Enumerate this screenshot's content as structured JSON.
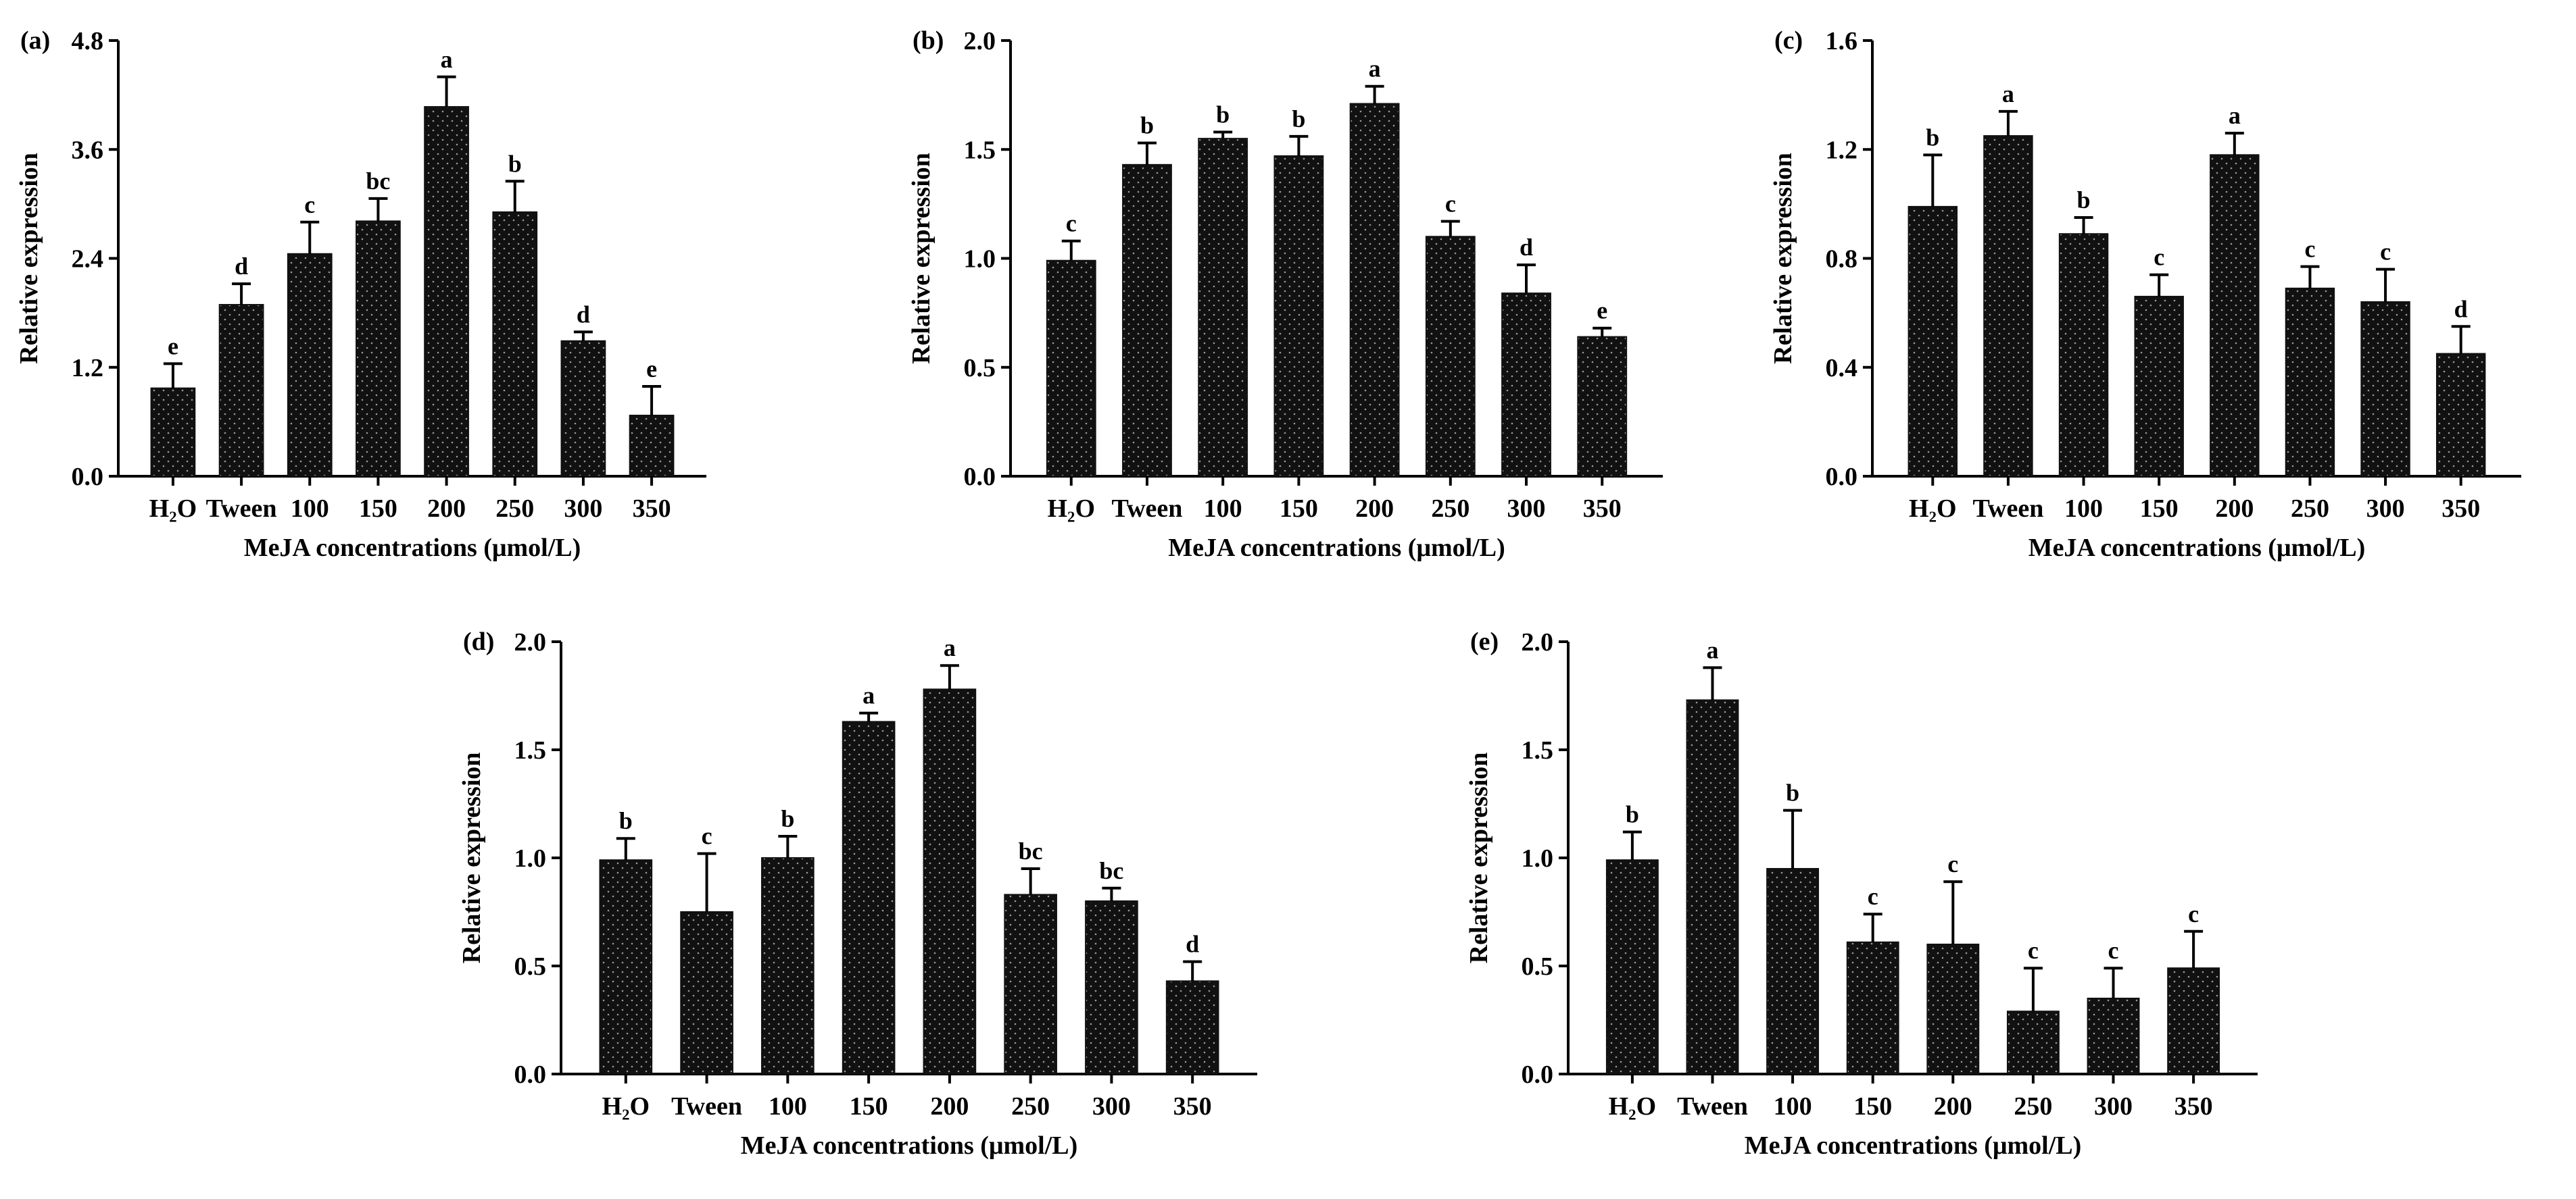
{
  "chart_data": [
    {
      "type": "bar",
      "panel": "(a)",
      "categories": [
        "H₂O",
        "Tween",
        "100",
        "150",
        "200",
        "250",
        "300",
        "350"
      ],
      "values": [
        0.97,
        1.89,
        2.45,
        2.81,
        4.07,
        2.91,
        1.49,
        0.67
      ],
      "errors": [
        0.27,
        0.23,
        0.35,
        0.25,
        0.33,
        0.34,
        0.1,
        0.32
      ],
      "significance": [
        "e",
        "d",
        "c",
        "bc",
        "a",
        "b",
        "d",
        "e"
      ],
      "xlabel": "MeJA  concentrations (μmol/L)",
      "ylabel": "Relative expression",
      "ylim": [
        0,
        4.8
      ],
      "yticks": [
        "0.0",
        "1.2",
        "2.4",
        "3.6",
        "4.8"
      ]
    },
    {
      "type": "bar",
      "panel": "(b)",
      "categories": [
        "H₂O",
        "Tween",
        "100",
        "150",
        "200",
        "250",
        "300",
        "350"
      ],
      "values": [
        0.99,
        1.43,
        1.55,
        1.47,
        1.71,
        1.1,
        0.84,
        0.64
      ],
      "errors": [
        0.09,
        0.1,
        0.03,
        0.09,
        0.08,
        0.07,
        0.13,
        0.04
      ],
      "significance": [
        "c",
        "b",
        "b",
        "b",
        "a",
        "c",
        "d",
        "e"
      ],
      "xlabel": "MeJA  concentrations (μmol/L)",
      "ylabel": "Relative expression",
      "ylim": [
        0,
        2.0
      ],
      "yticks": [
        "0.0",
        "0.5",
        "1.0",
        "1.5",
        "2.0"
      ]
    },
    {
      "type": "bar",
      "panel": "(c)",
      "categories": [
        "H₂O",
        "Tween",
        "100",
        "150",
        "200",
        "250",
        "300",
        "350"
      ],
      "values": [
        0.99,
        1.25,
        0.89,
        0.66,
        1.18,
        0.69,
        0.64,
        0.45
      ],
      "errors": [
        0.19,
        0.09,
        0.06,
        0.08,
        0.08,
        0.08,
        0.12,
        0.1
      ],
      "significance": [
        "b",
        "a",
        "b",
        "c",
        "a",
        "c",
        "c",
        "d"
      ],
      "xlabel": "MeJA  concentrations (μmol/L)",
      "ylabel": "Relative expression",
      "ylim": [
        0,
        1.6
      ],
      "yticks": [
        "0.0",
        "0.4",
        "0.8",
        "1.2",
        "1.6"
      ]
    },
    {
      "type": "bar",
      "panel": "(d)",
      "categories": [
        "H₂O",
        "Tween",
        "100",
        "150",
        "200",
        "250",
        "300",
        "350"
      ],
      "values": [
        0.99,
        0.75,
        1.0,
        1.63,
        1.78,
        0.83,
        0.8,
        0.43
      ],
      "errors": [
        0.1,
        0.27,
        0.1,
        0.04,
        0.11,
        0.12,
        0.06,
        0.09
      ],
      "significance": [
        "b",
        "c",
        "b",
        "a",
        "a",
        "bc",
        "bc",
        "d"
      ],
      "xlabel": "MeJA  concentrations (μmol/L)",
      "ylabel": "Relative expression",
      "ylim": [
        0,
        2.0
      ],
      "yticks": [
        "0.0",
        "0.5",
        "1.0",
        "1.5",
        "2.0"
      ]
    },
    {
      "type": "bar",
      "panel": "(e)",
      "categories": [
        "H₂O",
        "Tween",
        "100",
        "150",
        "200",
        "250",
        "300",
        "350"
      ],
      "values": [
        0.99,
        1.73,
        0.95,
        0.61,
        0.6,
        0.29,
        0.35,
        0.49
      ],
      "errors": [
        0.13,
        0.15,
        0.27,
        0.13,
        0.29,
        0.2,
        0.14,
        0.17
      ],
      "significance": [
        "b",
        "a",
        "b",
        "c",
        "c",
        "c",
        "c",
        "c"
      ],
      "xlabel": "MeJA  concentrations (μmol/L)",
      "ylabel": "Relative expression",
      "ylim": [
        0,
        2.0
      ],
      "yticks": [
        "0.0",
        "0.5",
        "1.0",
        "1.5",
        "2.0"
      ]
    }
  ],
  "style": {
    "bar_color": "#111111",
    "dot_color": "#9a9a9a",
    "axis_color": "#000000"
  }
}
